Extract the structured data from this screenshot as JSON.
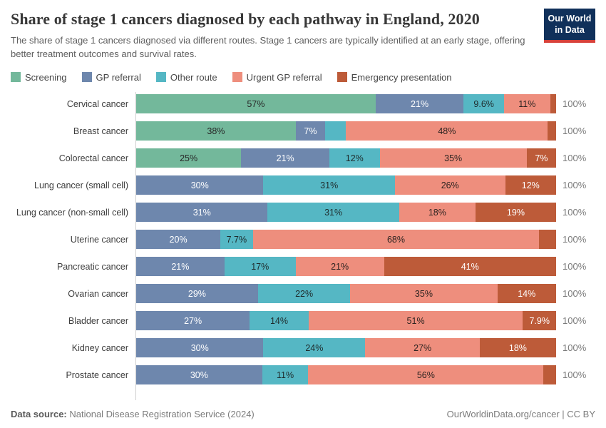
{
  "header": {
    "title": "Share of stage 1 cancers diagnosed by each pathway in England, 2020",
    "subtitle": "The share of stage 1 cancers diagnosed via different routes. Stage 1 cancers are typically identified at an early stage, offering better treatment outcomes and survival rates.",
    "logo": {
      "line1": "Our World",
      "line2": "in Data",
      "bg_color": "#10305a",
      "stripe_color": "#d7413a"
    }
  },
  "legend": {
    "items": [
      {
        "label": "Screening",
        "color": "#73b89b",
        "text_color": "#262626"
      },
      {
        "label": "GP referral",
        "color": "#6e87ad",
        "text_color": "#ffffff"
      },
      {
        "label": "Other route",
        "color": "#55b7c4",
        "text_color": "#1e2b2c"
      },
      {
        "label": "Urgent GP referral",
        "color": "#ee8e7d",
        "text_color": "#2c2320"
      },
      {
        "label": "Emergency presentation",
        "color": "#bd5b39",
        "text_color": "#ffffff"
      }
    ]
  },
  "chart_data": {
    "type": "bar",
    "variant": "horizontal-stacked-100",
    "title": "Share of stage 1 cancers diagnosed by each pathway in England, 2020",
    "unit": "%",
    "xlim": [
      0,
      100
    ],
    "grid": false,
    "legend_position": "top",
    "series_names": [
      "Screening",
      "GP referral",
      "Other route",
      "Urgent GP referral",
      "Emergency presentation"
    ],
    "right_axis_label": "100%",
    "rows": [
      {
        "category": "Cervical cancer",
        "values": [
          57,
          21,
          9.6,
          11,
          1.4
        ],
        "labels": [
          "57%",
          "21%",
          "9.6%",
          "11%",
          null
        ]
      },
      {
        "category": "Breast cancer",
        "values": [
          38,
          7,
          5,
          48,
          2
        ],
        "labels": [
          "38%",
          "7%",
          null,
          "48%",
          null
        ]
      },
      {
        "category": "Colorectal cancer",
        "values": [
          25,
          21,
          12,
          35,
          7
        ],
        "labels": [
          "25%",
          "21%",
          "12%",
          "35%",
          "7%"
        ]
      },
      {
        "category": "Lung cancer (small cell)",
        "values": [
          0,
          30,
          31,
          26,
          12
        ],
        "labels": [
          null,
          "30%",
          "31%",
          "26%",
          "12%"
        ]
      },
      {
        "category": "Lung cancer (non-small cell)",
        "values": [
          0,
          31,
          31,
          18,
          19
        ],
        "labels": [
          null,
          "31%",
          "31%",
          "18%",
          "19%"
        ]
      },
      {
        "category": "Uterine cancer",
        "values": [
          0,
          20,
          7.7,
          68,
          4
        ],
        "labels": [
          null,
          "20%",
          "7.7%",
          "68%",
          null
        ]
      },
      {
        "category": "Pancreatic cancer",
        "values": [
          0,
          21,
          17,
          21,
          41
        ],
        "labels": [
          null,
          "21%",
          "17%",
          "21%",
          "41%"
        ]
      },
      {
        "category": "Ovarian cancer",
        "values": [
          0,
          29,
          22,
          35,
          14
        ],
        "labels": [
          null,
          "29%",
          "22%",
          "35%",
          "14%"
        ]
      },
      {
        "category": "Bladder cancer",
        "values": [
          0,
          27,
          14,
          51,
          7.9
        ],
        "labels": [
          null,
          "27%",
          "14%",
          "51%",
          "7.9%"
        ]
      },
      {
        "category": "Kidney cancer",
        "values": [
          0,
          30,
          24,
          27,
          18
        ],
        "labels": [
          null,
          "30%",
          "24%",
          "27%",
          "18%"
        ]
      },
      {
        "category": "Prostate cancer",
        "values": [
          0,
          30,
          11,
          56,
          3
        ],
        "labels": [
          null,
          "30%",
          "11%",
          "56%",
          null
        ]
      }
    ]
  },
  "footer": {
    "source_label": "Data source:",
    "source_text": " National Disease Registration Service (2024)",
    "link_text": "OurWorldinData.org/cancer",
    "license_sep": " | ",
    "license_text": "CC BY"
  }
}
